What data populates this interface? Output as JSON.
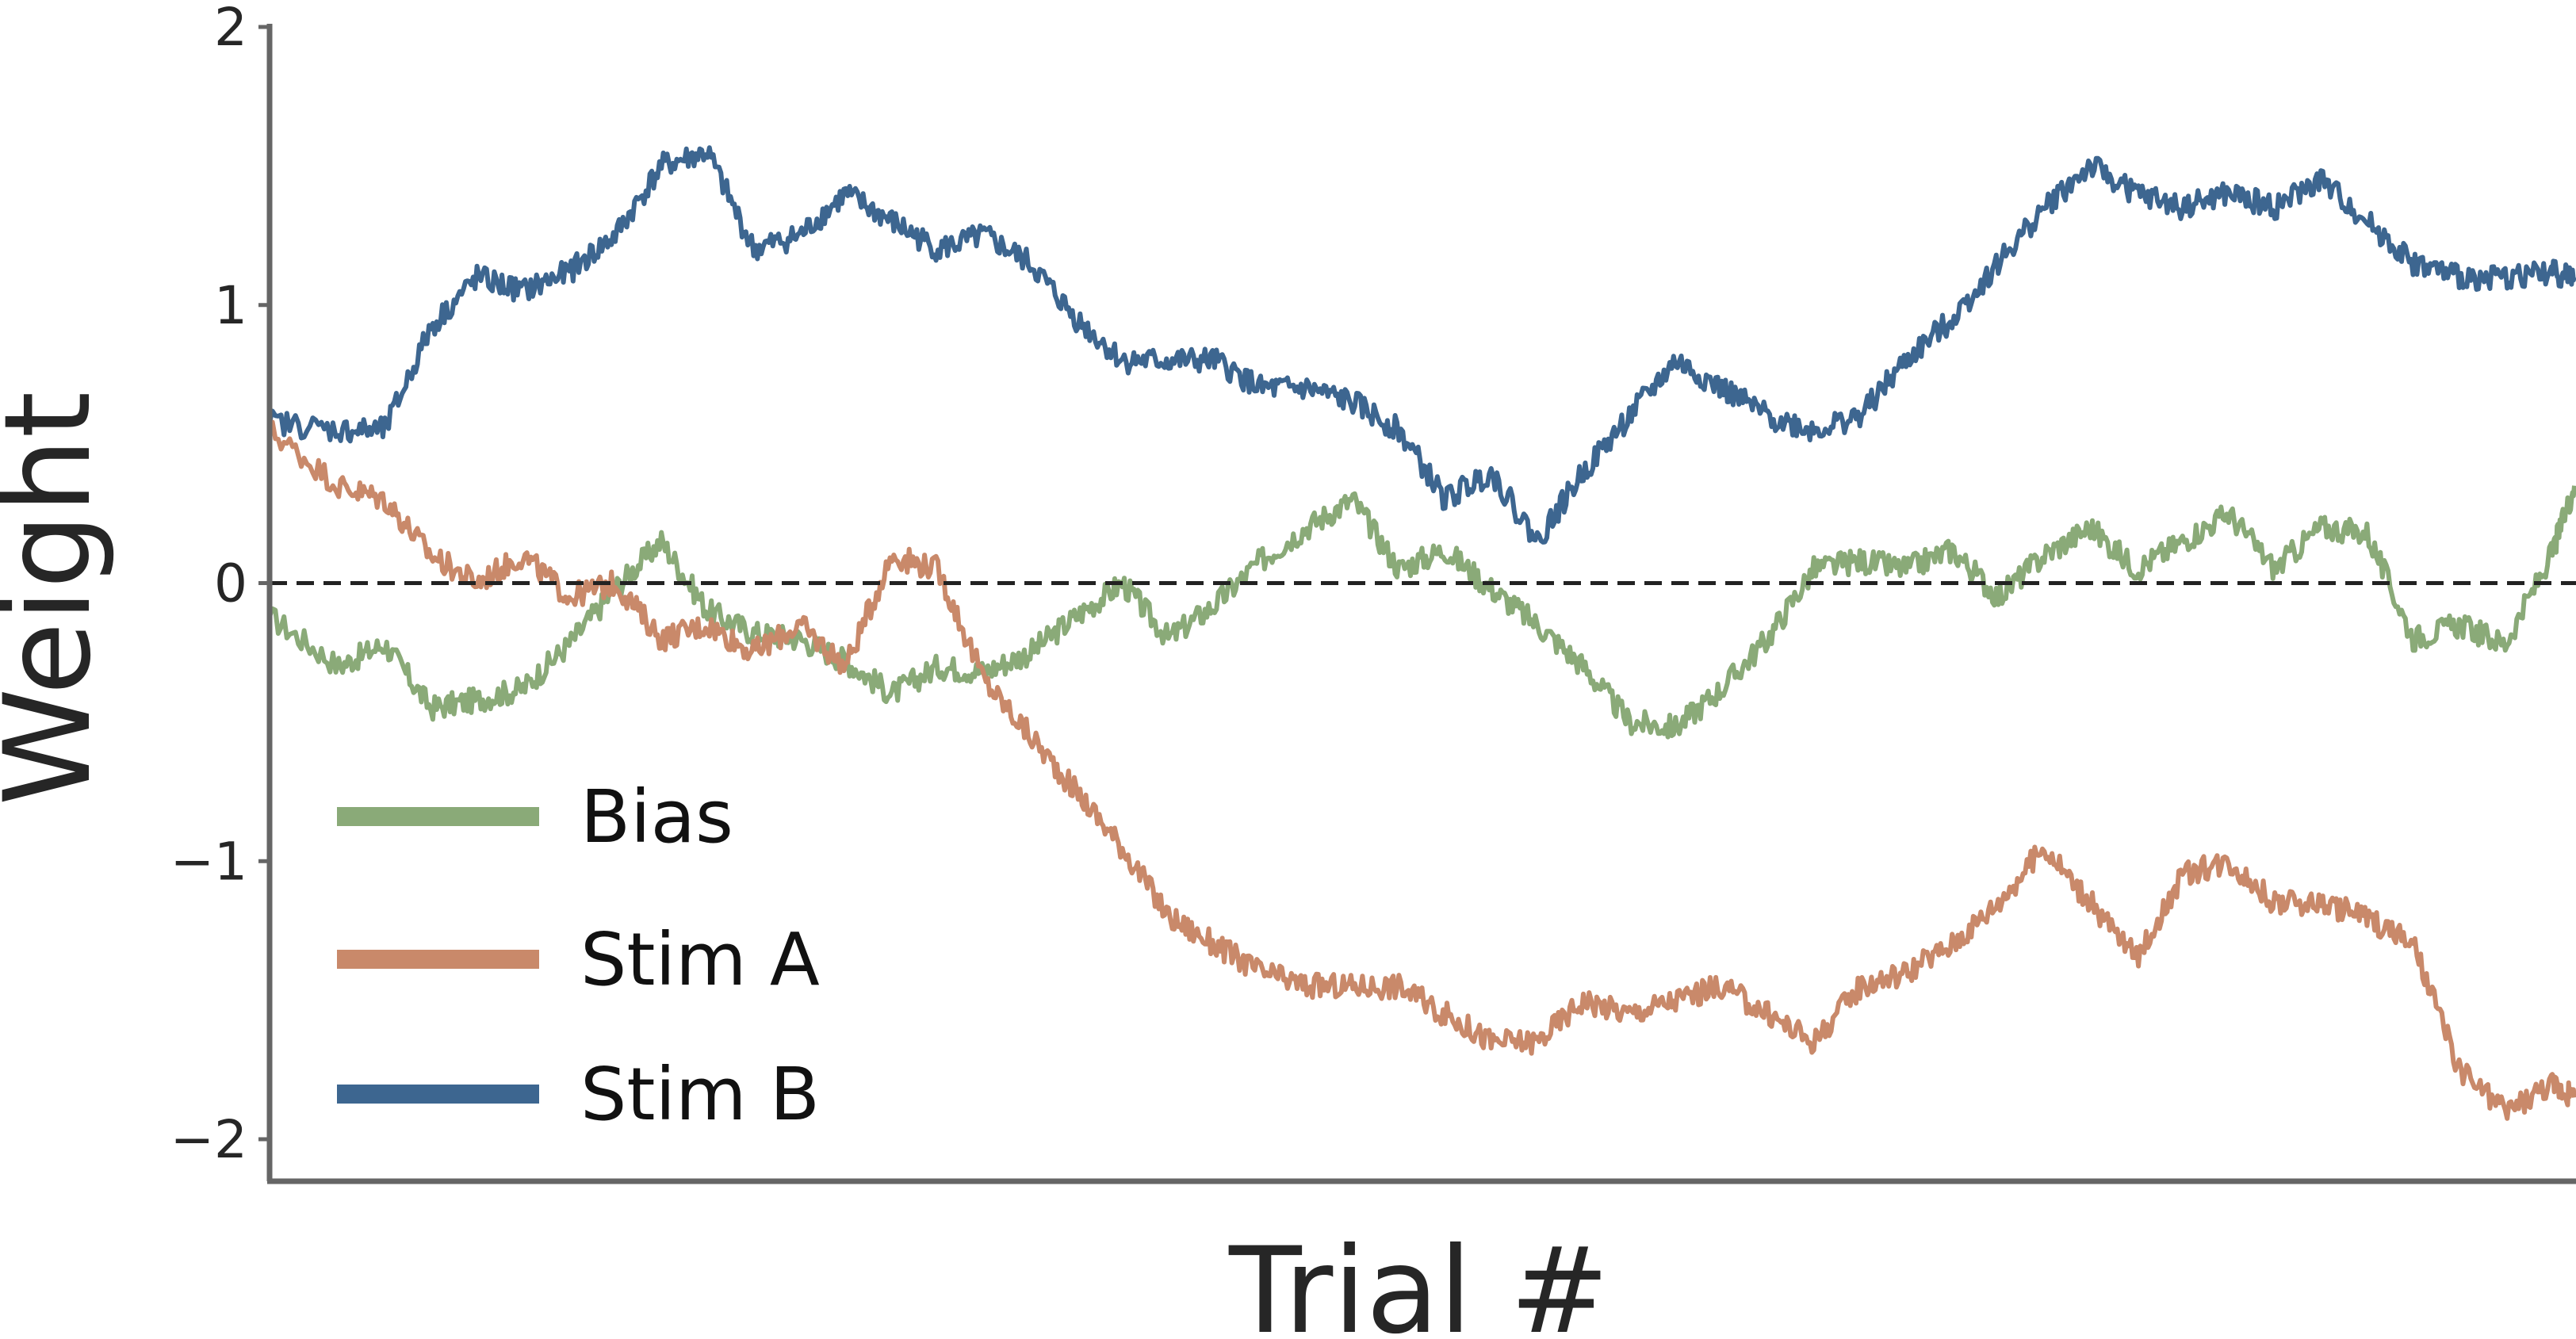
{
  "chart_data": {
    "type": "line",
    "xlabel": "Trial #",
    "ylabel": "Weight",
    "ylim": [
      -2.15,
      2.0
    ],
    "xlim": [
      0,
      1000
    ],
    "yticks": [
      {
        "value": 2,
        "label": "2"
      },
      {
        "value": 1,
        "label": "1"
      },
      {
        "value": 0,
        "label": "0"
      },
      {
        "value": -1,
        "label": "−1"
      },
      {
        "value": -2,
        "label": "−2"
      }
    ],
    "x_ticks_shown": false,
    "grid": false,
    "reference_line": {
      "y": 0,
      "style": "dashed",
      "color": "#222222"
    },
    "legend": {
      "placement": "lower-left"
    },
    "series": [
      {
        "name": "Bias",
        "color": "#8aaa78",
        "x": [
          0,
          30,
          50,
          70,
          90,
          110,
          130,
          150,
          170,
          190,
          210,
          230,
          250,
          270,
          290,
          310,
          330,
          350,
          370,
          390,
          410,
          430,
          450,
          470,
          490,
          510,
          530,
          550,
          570,
          590,
          610,
          630,
          650,
          670,
          690,
          710,
          730,
          750,
          770,
          790,
          810,
          830,
          850,
          870,
          890,
          910,
          930,
          950,
          970,
          990,
          1000
        ],
        "values": [
          -0.12,
          -0.3,
          -0.22,
          -0.45,
          -0.42,
          -0.38,
          -0.22,
          -0.02,
          0.15,
          -0.1,
          -0.18,
          -0.2,
          -0.28,
          -0.4,
          -0.3,
          -0.32,
          -0.25,
          -0.12,
          0.0,
          -0.2,
          -0.08,
          0.08,
          0.2,
          0.3,
          0.05,
          0.12,
          -0.02,
          -0.15,
          -0.3,
          -0.5,
          -0.52,
          -0.38,
          -0.2,
          0.05,
          0.08,
          0.05,
          0.12,
          -0.05,
          0.1,
          0.2,
          0.05,
          0.15,
          0.25,
          0.05,
          0.2,
          0.18,
          -0.2,
          -0.15,
          -0.22,
          0.1,
          0.35
        ]
      },
      {
        "name": "Stim A",
        "color": "#c9896a",
        "x": [
          0,
          30,
          50,
          70,
          90,
          110,
          130,
          150,
          170,
          190,
          210,
          230,
          250,
          270,
          290,
          310,
          330,
          350,
          370,
          390,
          410,
          430,
          450,
          470,
          490,
          510,
          530,
          550,
          570,
          590,
          610,
          630,
          650,
          670,
          690,
          710,
          730,
          750,
          770,
          790,
          810,
          830,
          850,
          870,
          890,
          910,
          930,
          950,
          970,
          990,
          1000
        ],
        "values": [
          0.55,
          0.35,
          0.3,
          0.1,
          0.0,
          0.1,
          -0.05,
          0.0,
          -0.2,
          -0.15,
          -0.25,
          -0.15,
          -0.3,
          0.1,
          0.05,
          -0.35,
          -0.55,
          -0.75,
          -0.95,
          -1.2,
          -1.3,
          -1.4,
          -1.45,
          -1.45,
          -1.45,
          -1.55,
          -1.65,
          -1.65,
          -1.5,
          -1.55,
          -1.5,
          -1.45,
          -1.55,
          -1.65,
          -1.45,
          -1.4,
          -1.3,
          -1.15,
          -0.95,
          -1.15,
          -1.35,
          -1.05,
          -1.0,
          -1.15,
          -1.15,
          -1.2,
          -1.3,
          -1.75,
          -1.9,
          -1.8,
          -1.85
        ]
      },
      {
        "name": "Stim B",
        "color": "#3d6690",
        "x": [
          0,
          30,
          50,
          70,
          90,
          110,
          130,
          150,
          170,
          190,
          210,
          230,
          250,
          270,
          290,
          310,
          330,
          350,
          370,
          390,
          410,
          430,
          450,
          470,
          490,
          510,
          530,
          550,
          570,
          590,
          610,
          630,
          650,
          670,
          690,
          710,
          730,
          750,
          770,
          790,
          810,
          830,
          850,
          870,
          890,
          910,
          930,
          950,
          970,
          990,
          1000
        ],
        "values": [
          0.58,
          0.55,
          0.55,
          0.92,
          1.1,
          1.05,
          1.12,
          1.25,
          1.5,
          1.55,
          1.2,
          1.25,
          1.4,
          1.3,
          1.2,
          1.25,
          1.15,
          0.95,
          0.8,
          0.8,
          0.8,
          0.7,
          0.7,
          0.65,
          0.55,
          0.3,
          0.4,
          0.15,
          0.4,
          0.6,
          0.8,
          0.7,
          0.6,
          0.55,
          0.6,
          0.8,
          0.95,
          1.15,
          1.35,
          1.5,
          1.4,
          1.35,
          1.4,
          1.35,
          1.45,
          1.3,
          1.15,
          1.1,
          1.1,
          1.12,
          1.1
        ]
      }
    ]
  }
}
